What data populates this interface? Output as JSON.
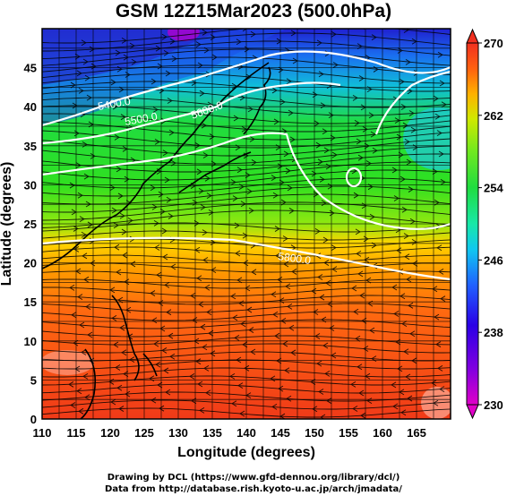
{
  "title": "GSM 12Z15Mar2023 (500.0hPa)",
  "xaxis": {
    "label": "Longitude (degrees)",
    "ticks": [
      "110",
      "115",
      "120",
      "125",
      "130",
      "135",
      "140",
      "145",
      "150",
      "155",
      "160",
      "165"
    ],
    "range": [
      110,
      170
    ]
  },
  "yaxis": {
    "label": "Latitude (degrees)",
    "ticks": [
      "0",
      "5",
      "10",
      "15",
      "20",
      "25",
      "30",
      "35",
      "40",
      "45"
    ],
    "range": [
      0,
      50
    ]
  },
  "colorbar": {
    "ticks": [
      "230",
      "238",
      "246",
      "254",
      "262",
      "270"
    ],
    "range": [
      230,
      270
    ],
    "colors": [
      "#e000c8",
      "#8000e0",
      "#2a00e6",
      "#2060ff",
      "#10c8f0",
      "#18e8a8",
      "#20dc40",
      "#70e820",
      "#d0e800",
      "#ffb000",
      "#ff6010",
      "#f03020"
    ]
  },
  "contours": {
    "labels": [
      "5400.0",
      "5500.0",
      "5600.0",
      "5800.0"
    ],
    "color": "#ffffff"
  },
  "credits": [
    "Drawing by DCL (https://www.gfd-dennou.org/library/dcl/)",
    "Data from http://database.rish.kyoto-u.ac.jp/arch/jmadata/"
  ],
  "chart_data": {
    "type": "heatmap",
    "title": "GSM 12Z15Mar2023 (500.0hPa)",
    "xlabel": "Longitude (degrees)",
    "ylabel": "Latitude (degrees)",
    "xlim": [
      110,
      170
    ],
    "ylim": [
      0,
      50
    ],
    "clim": [
      230,
      270
    ],
    "grid": true,
    "contour_levels": [
      5400,
      5500,
      5600,
      5800
    ]
  }
}
